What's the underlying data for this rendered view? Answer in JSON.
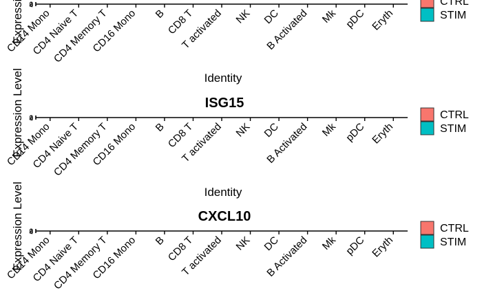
{
  "chart_data": {
    "type": "bar",
    "xlabel": "Identity",
    "ylabel": "Expression Level",
    "categories": [
      "CD14 Mono",
      "CD4 Naive T",
      "CD4 Memory T",
      "CD16 Mono",
      "B",
      "CD8 T",
      "T activated",
      "NK",
      "DC",
      "B Activated",
      "Mk",
      "pDC",
      "Eryth"
    ],
    "legend": {
      "position": "right",
      "entries": [
        {
          "name": "CTRL",
          "color": "#F8766D"
        },
        {
          "name": "STIM",
          "color": "#00BFC4"
        }
      ]
    },
    "panels": [
      {
        "title": "",
        "series": [
          {
            "name": "CTRL",
            "values": [
              0,
              0,
              0,
              0,
              0,
              0,
              0,
              0,
              0,
              0,
              0,
              0,
              0
            ]
          },
          {
            "name": "STIM",
            "values": [
              0,
              0,
              0,
              0,
              0,
              0,
              0,
              0,
              0,
              0,
              0,
              0,
              0
            ]
          }
        ]
      },
      {
        "title": "ISG15",
        "series": [
          {
            "name": "CTRL",
            "values": [
              0,
              0,
              0,
              0,
              0,
              0,
              0,
              0,
              0,
              0,
              0,
              0,
              0
            ]
          },
          {
            "name": "STIM",
            "values": [
              0,
              0,
              0,
              0,
              0,
              0,
              0,
              0,
              0,
              0,
              0,
              0,
              0
            ]
          }
        ]
      },
      {
        "title": "CXCL10",
        "series": [
          {
            "name": "CTRL",
            "values": [
              0,
              0,
              0,
              0,
              0,
              0,
              0,
              0,
              0,
              0,
              0,
              0,
              0
            ]
          },
          {
            "name": "STIM",
            "values": [
              0,
              0,
              0,
              0,
              0,
              0,
              0,
              0,
              0,
              0,
              0,
              0,
              0
            ]
          }
        ]
      }
    ],
    "grid": false
  }
}
